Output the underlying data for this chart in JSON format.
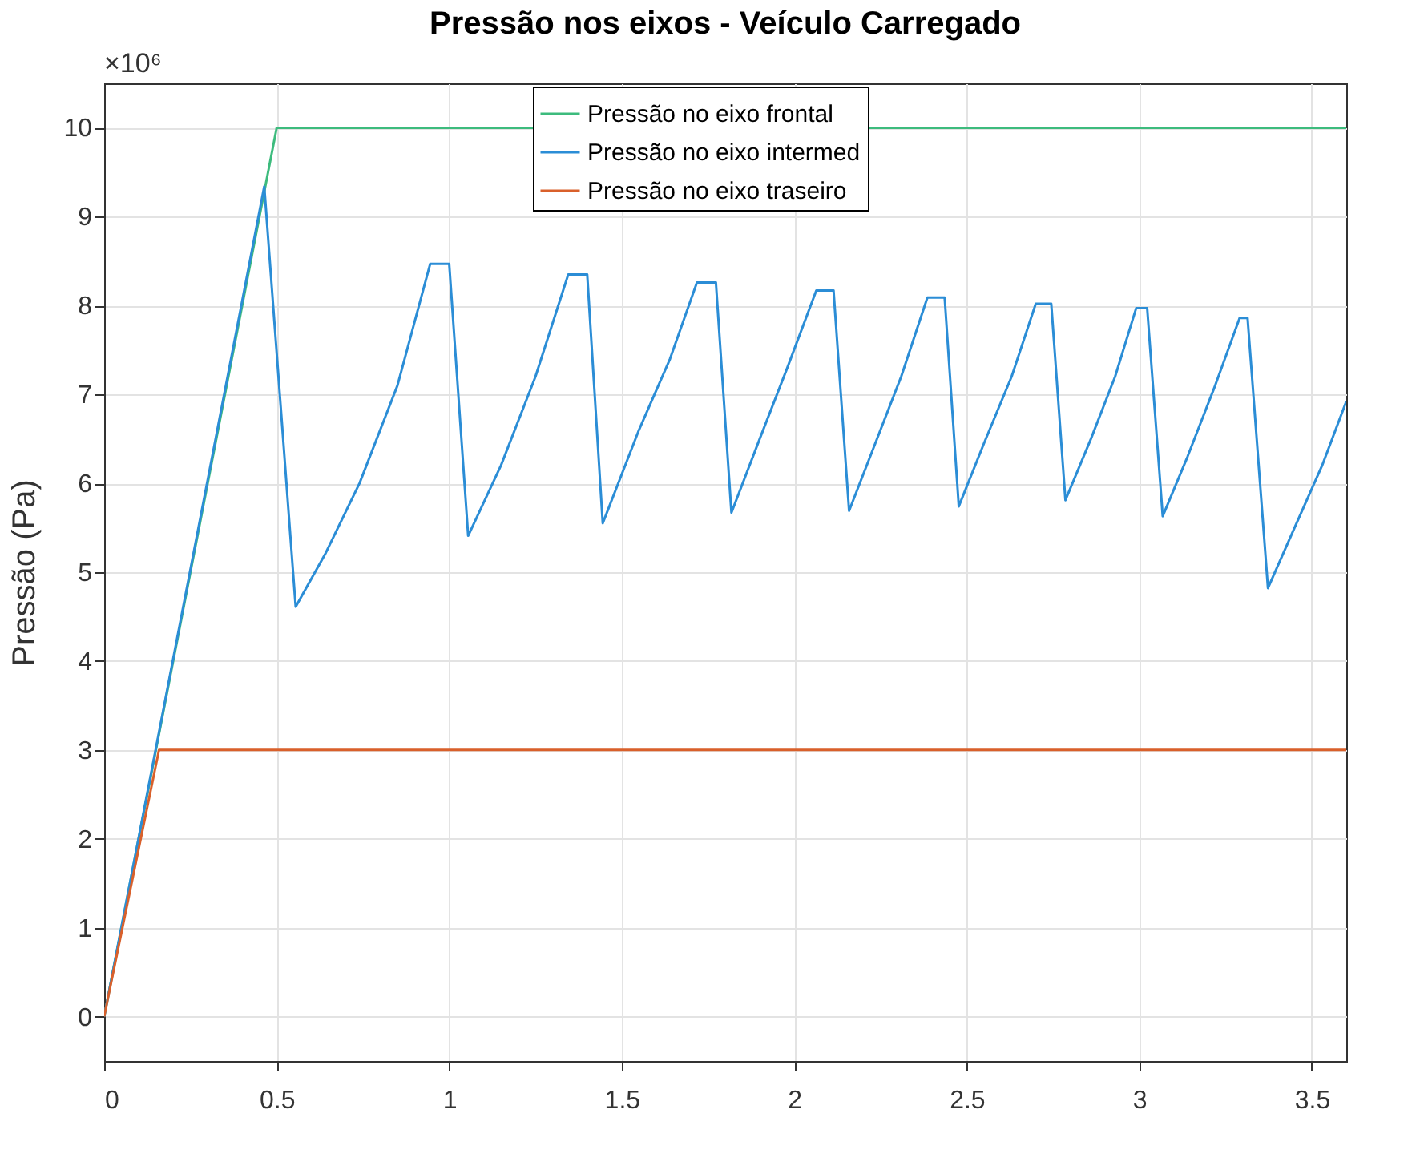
{
  "chart_data": {
    "type": "line",
    "title": "Pressão nos eixos - Veículo Carregado",
    "ylabel": "Pressão (Pa)",
    "annotations": [
      "×10⁶"
    ],
    "xlim": [
      0,
      3.6
    ],
    "xticks": [
      0,
      0.5,
      1,
      1.5,
      2,
      2.5,
      3,
      3.5
    ],
    "tick_labels": true,
    "ylim": [
      -0.5,
      10.5
    ],
    "yticks": [
      0,
      1,
      2,
      3,
      4,
      5,
      6,
      7,
      8,
      9,
      10
    ],
    "grid": true,
    "legend": "top",
    "line_style": "solid",
    "marker": "none",
    "series": [
      {
        "name": "Pressão no eixo frontal",
        "color": "#3dbb7d",
        "x": [
          0,
          0.5,
          3.6
        ],
        "values": [
          0,
          10,
          10
        ]
      },
      {
        "name": "Pressão no eixo intermed",
        "color": "#2b8dd6",
        "x": [
          0,
          0.464,
          0.555,
          0.64,
          0.74,
          0.85,
          0.945,
          1.0,
          1.055,
          1.15,
          1.25,
          1.345,
          1.4,
          1.445,
          1.55,
          1.64,
          1.718,
          1.773,
          1.818,
          1.9,
          1.98,
          2.064,
          2.114,
          2.159,
          2.23,
          2.31,
          2.386,
          2.436,
          2.477,
          2.55,
          2.63,
          2.7,
          2.745,
          2.786,
          2.86,
          2.93,
          2.991,
          3.023,
          3.068,
          3.14,
          3.22,
          3.291,
          3.314,
          3.373,
          3.45,
          3.53,
          3.6
        ],
        "values": [
          0,
          9.34,
          4.61,
          5.2,
          6.0,
          7.1,
          8.47,
          8.47,
          5.41,
          6.2,
          7.2,
          8.35,
          8.35,
          5.55,
          6.6,
          7.4,
          8.26,
          8.26,
          5.67,
          6.5,
          7.3,
          8.17,
          8.17,
          5.69,
          6.4,
          7.2,
          8.09,
          8.09,
          5.74,
          6.45,
          7.2,
          8.02,
          8.02,
          5.81,
          6.5,
          7.2,
          7.97,
          7.97,
          5.63,
          6.3,
          7.1,
          7.86,
          7.86,
          4.82,
          5.5,
          6.2,
          6.92
        ]
      },
      {
        "name": "Pressão no eixo traseiro",
        "color": "#d9602b",
        "x": [
          0,
          0.159,
          3.6
        ],
        "values": [
          0,
          3,
          3
        ]
      }
    ]
  }
}
